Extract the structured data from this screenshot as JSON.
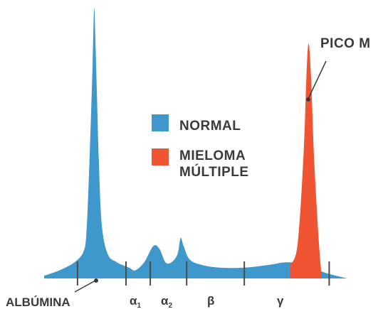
{
  "chart_data": {
    "type": "area",
    "title": "",
    "xlabel": "",
    "ylabel": "",
    "colors": {
      "normal": "#3e98cc",
      "mieloma": "#ef5532",
      "text": "#3a3a3a",
      "ticks": "#4a4a4a"
    },
    "legend": {
      "placement": "center",
      "entries": [
        {
          "key": "normal",
          "lines": [
            "NORMAL"
          ]
        },
        {
          "key": "mieloma",
          "lines": [
            "MIELOMA",
            "MÚLTIPLE"
          ]
        }
      ]
    },
    "fractions": [
      {
        "label": "ALBÚMINA",
        "symbol": ""
      },
      {
        "label": "",
        "symbol": "α",
        "sub": "1"
      },
      {
        "label": "",
        "symbol": "α",
        "sub": "2"
      },
      {
        "label": "",
        "symbol": "β",
        "sub": ""
      },
      {
        "label": "",
        "symbol": "γ",
        "sub": ""
      }
    ],
    "annotation": {
      "text": "PICO M"
    },
    "series": [
      {
        "key": "normal",
        "points": [
          [
            0,
            0.01
          ],
          [
            0.05,
            0.03
          ],
          [
            0.1,
            0.06
          ],
          [
            0.13,
            0.1
          ],
          [
            0.14,
            0.18
          ],
          [
            0.15,
            0.45
          ],
          [
            0.16,
            0.8
          ],
          [
            0.165,
            1.0
          ],
          [
            0.17,
            0.85
          ],
          [
            0.18,
            0.45
          ],
          [
            0.19,
            0.2
          ],
          [
            0.21,
            0.09
          ],
          [
            0.24,
            0.06
          ],
          [
            0.28,
            0.04
          ],
          [
            0.3,
            0.03
          ],
          [
            0.33,
            0.06
          ],
          [
            0.36,
            0.12
          ],
          [
            0.38,
            0.11
          ],
          [
            0.4,
            0.06
          ],
          [
            0.42,
            0.06
          ],
          [
            0.44,
            0.09
          ],
          [
            0.45,
            0.15
          ],
          [
            0.46,
            0.12
          ],
          [
            0.48,
            0.07
          ],
          [
            0.52,
            0.05
          ],
          [
            0.58,
            0.04
          ],
          [
            0.66,
            0.04
          ],
          [
            0.74,
            0.05
          ],
          [
            0.8,
            0.06
          ],
          [
            0.86,
            0.05
          ],
          [
            0.93,
            0.02
          ],
          [
            1,
            0
          ]
        ]
      },
      {
        "key": "mieloma",
        "points": [
          [
            0.81,
            0.05
          ],
          [
            0.835,
            0.12
          ],
          [
            0.855,
            0.45
          ],
          [
            0.865,
            0.75
          ],
          [
            0.872,
            0.87
          ],
          [
            0.88,
            0.75
          ],
          [
            0.89,
            0.45
          ],
          [
            0.905,
            0.15
          ],
          [
            0.915,
            0.01
          ]
        ]
      }
    ]
  }
}
